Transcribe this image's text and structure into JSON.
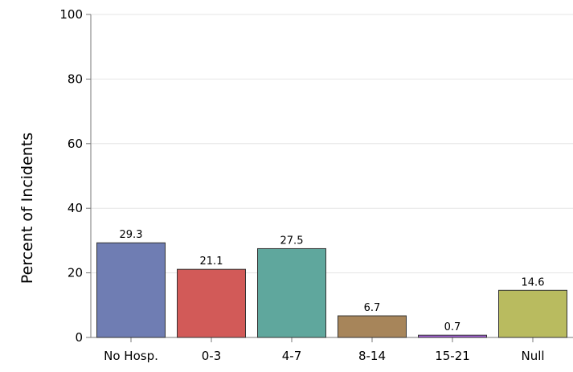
{
  "chart_data": {
    "type": "bar",
    "title": "",
    "xlabel": "",
    "ylabel": "Percent of Incidents",
    "categories": [
      "No Hosp.",
      "0-3",
      "4-7",
      "8-14",
      "15-21",
      "Null"
    ],
    "values": [
      29.3,
      21.1,
      27.5,
      6.7,
      0.7,
      14.6
    ],
    "data_labels": [
      "29.3",
      "21.1",
      "27.5",
      "6.7",
      "0.7",
      "14.6"
    ],
    "ylim": [
      0,
      100
    ],
    "yticks": [
      0,
      20,
      40,
      60,
      80,
      100
    ],
    "grid": true,
    "legend": "none",
    "colors": [
      "#6f7db3",
      "#d25a58",
      "#5fa79d",
      "#a7855a",
      "#a562d6",
      "#b9bb5f"
    ],
    "bar_stroke": "#333333",
    "axis_color": "#777777",
    "grid_color": "#e6e6e6"
  }
}
